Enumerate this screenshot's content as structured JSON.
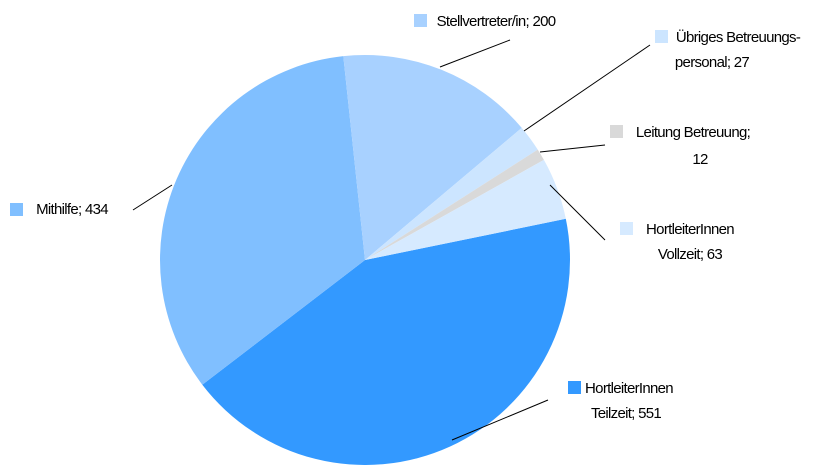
{
  "chart_data": {
    "type": "pie",
    "values": [
      551,
      434,
      200,
      27,
      12,
      63
    ],
    "value_labels": [
      [
        "HortleiterInnen",
        "Teilzeit; 551"
      ],
      [
        "Mithilfe; 434"
      ],
      [
        "Stellvertreter/in; 200"
      ],
      [
        "Übriges Betreuungs-",
        "personal; 27"
      ],
      [
        "Leitung Betreuung;",
        "12"
      ],
      [
        "HortleiterInnen",
        "Vollzeit; 63"
      ]
    ],
    "colors": [
      "#3399ff",
      "#80bfff",
      "#a8d1ff",
      "#cce5ff",
      "#d9d9d9",
      "#d6eaff"
    ]
  }
}
